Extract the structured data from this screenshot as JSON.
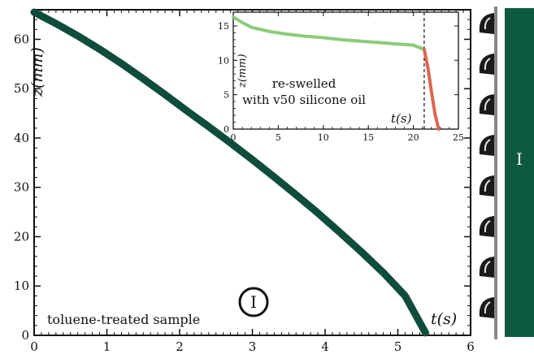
{
  "colors": {
    "main_curve": "#0e4d3b",
    "inset_green": "#8ccb7a",
    "inset_red": "#dd6652",
    "side_bar": "#0e5a40",
    "frame": "#111111"
  },
  "chart_data": [
    {
      "type": "line",
      "xlabel": "t(s)",
      "ylabel": "z(mm)",
      "xlim": [
        0,
        6
      ],
      "ylim": [
        0,
        66
      ],
      "xticks": [
        0,
        1,
        2,
        3,
        4,
        5,
        6
      ],
      "yticks": [
        0,
        10,
        20,
        30,
        40,
        50,
        60
      ],
      "series": [
        {
          "x": [
            0,
            0.3,
            0.6,
            0.9,
            1.2,
            1.5,
            1.8,
            2.1,
            2.4,
            2.7,
            3.0,
            3.3,
            3.6,
            3.9,
            4.2,
            4.5,
            4.8,
            5.1,
            5.38
          ],
          "y": [
            65.5,
            63.2,
            60.7,
            58.0,
            55.1,
            52.0,
            48.8,
            45.5,
            42.3,
            39.0,
            35.6,
            32.1,
            28.5,
            24.8,
            20.9,
            16.9,
            12.7,
            8.0,
            0.5
          ]
        }
      ],
      "annotations": [
        "toluene-treated sample",
        "I"
      ]
    },
    {
      "type": "line",
      "inset": true,
      "xlabel": "t(s)",
      "ylabel": "z(mm)",
      "xlim": [
        0,
        25
      ],
      "ylim": [
        0,
        17
      ],
      "xticks": [
        0,
        5,
        10,
        15,
        20,
        25
      ],
      "yticks": [
        0,
        5,
        10,
        15
      ],
      "vline_x": 21.2,
      "series": [
        {
          "color": "inset_green",
          "x": [
            0,
            1,
            2,
            4,
            6,
            8,
            10,
            12,
            14,
            16,
            18,
            20,
            21.2
          ],
          "y": [
            16.3,
            15.5,
            14.8,
            14.2,
            13.8,
            13.5,
            13.3,
            13.0,
            12.8,
            12.6,
            12.4,
            12.2,
            11.6
          ]
        },
        {
          "color": "inset_red",
          "x": [
            21.2,
            21.6,
            22.0,
            22.4,
            22.8
          ],
          "y": [
            11.6,
            9.0,
            5.5,
            2.2,
            0
          ]
        }
      ],
      "annotations": [
        "re-swelled",
        "with v50 silicone oil"
      ]
    }
  ],
  "side_panel": {
    "label": "I"
  }
}
